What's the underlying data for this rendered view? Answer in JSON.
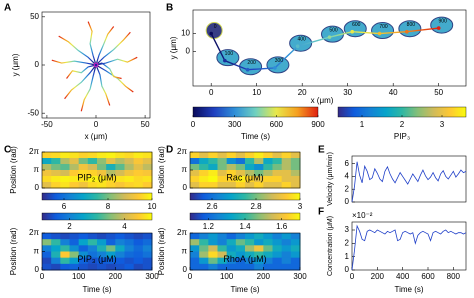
{
  "chart_data": [
    {
      "type": "trajectory",
      "panel": "A",
      "xlabel": "x (μm)",
      "ylabel": "y (μm)",
      "xlim": [
        -55,
        55
      ],
      "ylim": [
        -55,
        55
      ],
      "xticks": [
        -50,
        0,
        50
      ],
      "yticks": [
        -50,
        0,
        50
      ],
      "colormap": [
        "#0b0b5a",
        "#1f3fbf",
        "#2f8fd8",
        "#6fd0c0",
        "#e8e84a",
        "#f5a020",
        "#e02010"
      ],
      "series": [
        {
          "x": [
            0,
            -8,
            -18,
            -28,
            -38
          ],
          "y": [
            0,
            8,
            15,
            24,
            30
          ]
        },
        {
          "x": [
            0,
            -10,
            -22,
            -35,
            -45
          ],
          "y": [
            0,
            2,
            4,
            2,
            5
          ]
        },
        {
          "x": [
            0,
            -6,
            -15,
            -25,
            -32
          ],
          "y": [
            0,
            -8,
            -18,
            -26,
            -35
          ]
        },
        {
          "x": [
            0,
            -3,
            -6,
            -12,
            -15
          ],
          "y": [
            0,
            -12,
            -25,
            -36,
            -48
          ]
        },
        {
          "x": [
            0,
            4,
            6,
            10,
            14
          ],
          "y": [
            0,
            -10,
            -22,
            -30,
            -42
          ]
        },
        {
          "x": [
            0,
            10,
            22,
            30,
            38
          ],
          "y": [
            0,
            -6,
            -14,
            -22,
            -28
          ]
        },
        {
          "x": [
            0,
            10,
            22,
            32,
            42
          ],
          "y": [
            0,
            2,
            6,
            3,
            8
          ]
        },
        {
          "x": [
            0,
            8,
            18,
            28,
            35
          ],
          "y": [
            0,
            8,
            16,
            26,
            34
          ]
        },
        {
          "x": [
            0,
            3,
            8,
            12,
            18
          ],
          "y": [
            0,
            10,
            22,
            32,
            40
          ]
        },
        {
          "x": [
            0,
            -3,
            -6,
            -4,
            -8
          ],
          "y": [
            0,
            10,
            22,
            35,
            45
          ]
        },
        {
          "x": [
            0,
            -8,
            -15,
            -24,
            -30
          ],
          "y": [
            0,
            -2,
            -8,
            -6,
            -14
          ]
        },
        {
          "x": [
            0,
            6,
            14,
            18,
            26
          ],
          "y": [
            0,
            2,
            -4,
            -12,
            -14
          ]
        }
      ]
    },
    {
      "type": "track",
      "panel": "B",
      "xlabel": "x (μm)",
      "ylabel": "y (μm)",
      "xlim": [
        -4,
        56
      ],
      "ylim": [
        -19,
        23
      ],
      "xticks": [
        0,
        10,
        20,
        30,
        40,
        50
      ],
      "yticks": [
        0,
        10
      ],
      "x": [
        0,
        3,
        8,
        14,
        19,
        26,
        31,
        37,
        43,
        50
      ],
      "y": [
        10,
        -5,
        -10,
        -9,
        3,
        8,
        11,
        10,
        11,
        13
      ],
      "times": [
        0,
        100,
        200,
        300,
        400,
        500,
        600,
        700,
        800,
        900
      ],
      "colorbars": [
        {
          "label": "Time (s)",
          "zlim": [
            0,
            900
          ],
          "zticks": [
            0,
            300,
            600,
            900
          ],
          "colormap": [
            "#0b0b5a",
            "#1f3fbf",
            "#2f8fd8",
            "#6fd0c0",
            "#e8e84a",
            "#f5a020",
            "#e02010"
          ]
        },
        {
          "label": "PIP₃",
          "zlim": [
            0.4,
            3.6
          ],
          "zticks": [
            1,
            2,
            3
          ],
          "colormap": [
            "#352a87",
            "#0f5cdd",
            "#1481d6",
            "#06a4ca",
            "#2eb7a4",
            "#87bf77",
            "#d1bb59",
            "#fec832",
            "#f9fb0e"
          ]
        }
      ]
    },
    {
      "type": "heatmap",
      "panel": "C",
      "label": "PIP₂ (μM)",
      "ylabel": "Position (rad)",
      "xlim": [
        0,
        300
      ],
      "ylim": [
        0,
        6.2832
      ],
      "yticks": [
        0,
        {
          "value": 3.1416,
          "label": "π"
        },
        {
          "value": 6.2832,
          "label": "2π"
        }
      ],
      "zlim": [
        5,
        10
      ],
      "zticks": [
        6,
        8,
        10
      ],
      "colormap": [
        "#352a87",
        "#0f5cdd",
        "#1481d6",
        "#06a4ca",
        "#2eb7a4",
        "#87bf77",
        "#d1bb59",
        "#fec832",
        "#f9fb0e"
      ],
      "z": [
        [
          9.5,
          9.6,
          9.8,
          9.7,
          9.5,
          9.6,
          9.8,
          9.9,
          9.7,
          9.6,
          9.8,
          9.7
        ],
        [
          7.0,
          7.5,
          8.5,
          9.0,
          8.0,
          7.5,
          8.2,
          9.0,
          8.5,
          8.8,
          9.3,
          9.0
        ],
        [
          8.5,
          8.0,
          7.8,
          8.5,
          9.2,
          8.8,
          8.0,
          7.2,
          7.8,
          8.5,
          9.0,
          8.6
        ],
        [
          9.2,
          9.0,
          8.8,
          9.4,
          9.6,
          9.5,
          9.2,
          8.5,
          8.8,
          9.2,
          9.4,
          9.3
        ],
        [
          9.6,
          9.8,
          9.9,
          9.8,
          9.7,
          9.9,
          9.8,
          9.6,
          9.7,
          9.8,
          9.6,
          9.7
        ],
        [
          9.0,
          9.5,
          9.7,
          9.4,
          9.2,
          9.6,
          9.7,
          9.5,
          9.3,
          9.5,
          9.6,
          9.4
        ]
      ]
    },
    {
      "type": "heatmap",
      "label": "PIP₃ (μM)",
      "ylabel": "Position (rad)",
      "xlabel": "Time (s)",
      "xlim": [
        0,
        300
      ],
      "xticks": [
        0,
        100,
        200,
        300
      ],
      "ylim": [
        0,
        6.2832
      ],
      "yticks": [
        0,
        {
          "value": 3.1416,
          "label": "π"
        },
        {
          "value": 6.2832,
          "label": "2π"
        }
      ],
      "zlim": [
        1,
        5
      ],
      "zticks": [
        2,
        4
      ],
      "colormap": [
        "#352a87",
        "#0f5cdd",
        "#1481d6",
        "#06a4ca",
        "#2eb7a4",
        "#87bf77",
        "#d1bb59",
        "#fec832",
        "#f9fb0e"
      ],
      "z": [
        [
          1.5,
          1.4,
          1.3,
          1.4,
          1.5,
          1.4,
          1.3,
          1.4,
          1.5,
          1.4,
          1.3,
          1.4
        ],
        [
          3.5,
          3.0,
          2.0,
          1.6,
          2.5,
          3.0,
          2.4,
          1.6,
          2.0,
          1.8,
          1.5,
          1.7
        ],
        [
          2.0,
          2.5,
          3.0,
          2.2,
          1.6,
          2.0,
          2.8,
          3.4,
          2.6,
          2.0,
          1.7,
          2.0
        ],
        [
          1.6,
          2.8,
          4.5,
          3.5,
          2.2,
          1.8,
          2.0,
          2.4,
          2.0,
          1.7,
          1.6,
          1.8
        ],
        [
          1.3,
          2.0,
          3.0,
          2.4,
          1.6,
          1.4,
          1.5,
          1.6,
          1.5,
          1.4,
          1.5,
          1.4
        ],
        [
          1.4,
          1.3,
          1.5,
          1.6,
          1.4,
          1.3,
          1.4,
          1.3,
          1.4,
          1.5,
          1.3,
          1.4
        ]
      ]
    },
    {
      "type": "heatmap",
      "panel": "D",
      "label": "Rac (μM)",
      "ylabel": "Position (rad)",
      "xlim": [
        0,
        300
      ],
      "ylim": [
        0,
        6.2832
      ],
      "yticks": [
        0,
        {
          "value": 3.1416,
          "label": "π"
        },
        {
          "value": 6.2832,
          "label": "2π"
        }
      ],
      "zlim": [
        2.5,
        3.0
      ],
      "zticks": [
        2.6,
        2.8,
        3
      ],
      "colormap": [
        "#352a87",
        "#0f5cdd",
        "#1481d6",
        "#06a4ca",
        "#2eb7a4",
        "#87bf77",
        "#d1bb59",
        "#fec832",
        "#f9fb0e"
      ],
      "z": [
        [
          2.95,
          2.9,
          2.95,
          2.9,
          2.95,
          2.9,
          2.95,
          2.98,
          2.95,
          2.9,
          2.95,
          2.9
        ],
        [
          2.6,
          2.7,
          2.75,
          2.8,
          2.65,
          2.6,
          2.75,
          2.85,
          2.7,
          2.75,
          2.85,
          2.8
        ],
        [
          2.8,
          2.75,
          2.7,
          2.8,
          2.85,
          2.8,
          2.7,
          2.65,
          2.75,
          2.8,
          2.85,
          2.8
        ],
        [
          2.9,
          2.95,
          2.98,
          2.9,
          2.95,
          2.9,
          2.85,
          2.8,
          2.85,
          2.9,
          2.9,
          2.85
        ],
        [
          2.95,
          2.98,
          3.0,
          2.95,
          2.95,
          2.98,
          2.95,
          2.9,
          2.95,
          2.95,
          2.9,
          2.9
        ],
        [
          2.9,
          2.95,
          2.95,
          2.9,
          2.9,
          2.95,
          2.9,
          2.95,
          2.9,
          2.9,
          2.95,
          2.9
        ]
      ]
    },
    {
      "type": "heatmap",
      "label": "RhoA (μM)",
      "ylabel": "Position (rad)",
      "xlabel": "Time (s)",
      "xlim": [
        0,
        300
      ],
      "xticks": [
        0,
        100,
        200,
        300
      ],
      "ylim": [
        0,
        6.2832
      ],
      "yticks": [
        0,
        {
          "value": 3.1416,
          "label": "π"
        },
        {
          "value": 6.2832,
          "label": "2π"
        }
      ],
      "zlim": [
        1.1,
        1.7
      ],
      "zticks": [
        1.2,
        1.4,
        1.6
      ],
      "colormap": [
        "#352a87",
        "#0f5cdd",
        "#1481d6",
        "#06a4ca",
        "#2eb7a4",
        "#87bf77",
        "#d1bb59",
        "#fec832",
        "#f9fb0e"
      ],
      "z": [
        [
          1.2,
          1.25,
          1.3,
          1.25,
          1.2,
          1.25,
          1.3,
          1.35,
          1.3,
          1.25,
          1.3,
          1.25
        ],
        [
          1.5,
          1.4,
          1.3,
          1.25,
          1.35,
          1.45,
          1.4,
          1.3,
          1.35,
          1.3,
          1.25,
          1.3
        ],
        [
          1.3,
          1.45,
          1.55,
          1.4,
          1.3,
          1.35,
          1.5,
          1.6,
          1.45,
          1.35,
          1.3,
          1.35
        ],
        [
          1.25,
          1.5,
          1.65,
          1.55,
          1.35,
          1.3,
          1.35,
          1.4,
          1.35,
          1.3,
          1.25,
          1.3
        ],
        [
          1.2,
          1.3,
          1.45,
          1.35,
          1.25,
          1.2,
          1.25,
          1.3,
          1.25,
          1.2,
          1.25,
          1.2
        ],
        [
          1.2,
          1.2,
          1.25,
          1.2,
          1.2,
          1.2,
          1.2,
          1.25,
          1.2,
          1.2,
          1.2,
          1.2
        ]
      ]
    },
    {
      "type": "line",
      "panel": "E",
      "ylabel": "Velocity (μm/min)",
      "color": "#1f3fc8",
      "xlim": [
        0,
        900
      ],
      "ylim": [
        0,
        7.2
      ],
      "yticks": [
        0,
        2,
        4,
        6
      ],
      "x": [
        0,
        20,
        40,
        60,
        80,
        100,
        120,
        140,
        160,
        180,
        200,
        220,
        240,
        260,
        280,
        300,
        320,
        340,
        360,
        380,
        400,
        420,
        440,
        460,
        480,
        500,
        520,
        540,
        560,
        580,
        600,
        620,
        640,
        660,
        680,
        700,
        720,
        740,
        760,
        780,
        800,
        820,
        840,
        860,
        880,
        900
      ],
      "values": [
        0,
        2.5,
        6.3,
        4.2,
        3.0,
        5.6,
        4.8,
        3.5,
        3.8,
        5.2,
        4.5,
        3.6,
        3.2,
        4.8,
        5.5,
        4.4,
        3.6,
        3.0,
        3.8,
        4.6,
        4.0,
        3.4,
        2.8,
        3.6,
        4.4,
        3.8,
        3.2,
        4.2,
        5.0,
        4.1,
        3.5,
        3.9,
        4.6,
        3.8,
        3.3,
        4.4,
        4.9,
        4.0,
        3.6,
        4.2,
        4.8,
        3.9,
        4.4,
        5.0,
        4.6,
        4.8
      ]
    },
    {
      "type": "line",
      "panel": "F",
      "ylabel": "Concentration (μM)",
      "scale_label": "×10⁻²",
      "xlabel": "Time (s)",
      "color": "#1f3fc8",
      "xlim": [
        0,
        900
      ],
      "xticks": [
        0,
        200,
        400,
        600,
        800
      ],
      "ylim": [
        0,
        3.6
      ],
      "yticks": [
        0,
        1,
        2,
        3
      ],
      "x": [
        0,
        20,
        40,
        60,
        80,
        100,
        120,
        140,
        160,
        180,
        200,
        220,
        240,
        260,
        280,
        300,
        320,
        340,
        360,
        380,
        400,
        420,
        440,
        460,
        480,
        500,
        520,
        540,
        560,
        580,
        600,
        620,
        640,
        660,
        680,
        700,
        720,
        740,
        760,
        780,
        800,
        820,
        840,
        860,
        880,
        900
      ],
      "values": [
        0,
        1.5,
        3.3,
        2.9,
        2.3,
        2.2,
        2.9,
        3.0,
        2.9,
        2.8,
        3.0,
        2.9,
        2.8,
        2.7,
        2.9,
        2.8,
        2.9,
        3.0,
        2.2,
        2.3,
        2.8,
        2.9,
        2.8,
        2.7,
        2.8,
        2.0,
        2.6,
        2.8,
        2.9,
        2.8,
        2.7,
        2.2,
        2.8,
        2.9,
        2.8,
        2.7,
        2.9,
        3.0,
        2.8,
        2.9,
        2.8,
        2.7,
        2.8,
        2.8,
        2.7,
        2.8
      ]
    }
  ]
}
